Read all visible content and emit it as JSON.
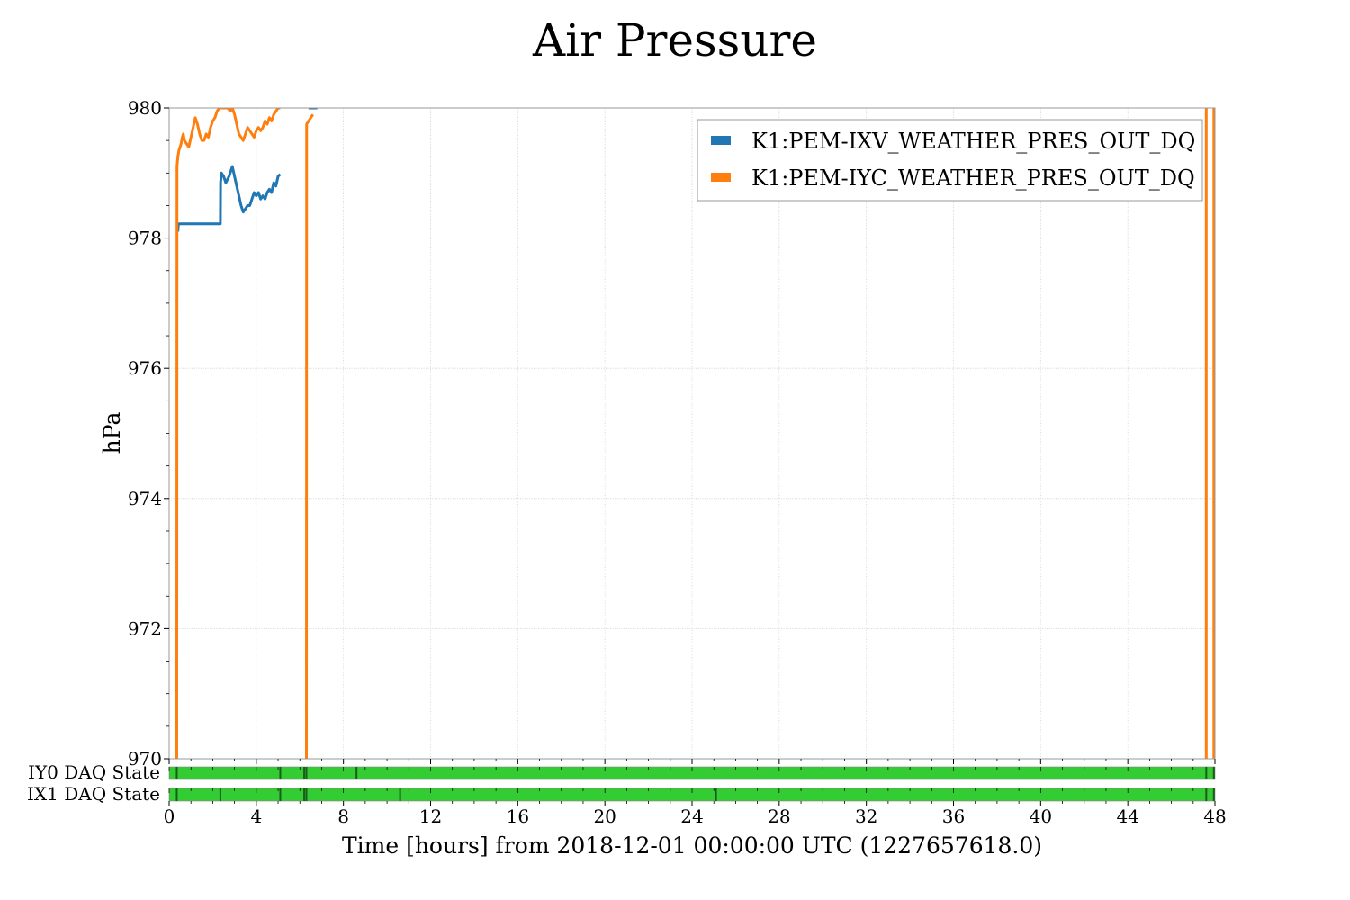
{
  "chart_data": {
    "type": "line",
    "title": "Air Pressure",
    "xlabel": "Time [hours] from 2018-12-01 00:00:00 UTC (1227657618.0)",
    "ylabel": "hPa",
    "xlim": [
      0,
      48
    ],
    "ylim": [
      970,
      980
    ],
    "x_ticks": [
      0,
      4,
      8,
      12,
      16,
      20,
      24,
      28,
      32,
      36,
      40,
      44,
      48
    ],
    "y_ticks": [
      970,
      972,
      974,
      976,
      978,
      980
    ],
    "x_tick_labels": [
      "0",
      "4",
      "8",
      "12",
      "16",
      "20",
      "24",
      "28",
      "32",
      "36",
      "40",
      "44",
      "48"
    ],
    "y_tick_labels": [
      "970",
      "972",
      "974",
      "976",
      "978",
      "980"
    ],
    "grid": true,
    "legend_position": "top-right",
    "series": [
      {
        "name": "K1:PEM-IXV_WEATHER_PRES_OUT_DQ",
        "color": "#1f77b4",
        "segments": [
          {
            "x": [
              0.4,
              0.42,
              0.45,
              0.5,
              0.8,
              1.2,
              1.6,
              2.0,
              2.35,
              2.36,
              2.4,
              2.5,
              2.6,
              2.75,
              2.9,
              3.0,
              3.1,
              3.2,
              3.3,
              3.4,
              3.5,
              3.6,
              3.7,
              3.8,
              3.9,
              4.0,
              4.1,
              4.2,
              4.3,
              4.4,
              4.5,
              4.6,
              4.7,
              4.8,
              4.9,
              5.0,
              5.1
            ],
            "y": [
              978.1,
              978.2,
              978.22,
              978.22,
              978.22,
              978.22,
              978.22,
              978.22,
              978.22,
              978.85,
              979.0,
              978.95,
              978.85,
              978.95,
              979.1,
              978.95,
              978.8,
              978.65,
              978.5,
              978.4,
              978.45,
              978.5,
              978.5,
              978.6,
              978.7,
              978.65,
              978.7,
              978.6,
              978.65,
              978.6,
              978.7,
              978.75,
              978.7,
              978.85,
              978.8,
              978.95,
              978.98
            ]
          },
          {
            "x": [
              6.4,
              6.6,
              6.8
            ],
            "y": [
              980.0,
              980.0,
              980.0
            ]
          }
        ]
      },
      {
        "name": "K1:PEM-IYC_WEATHER_PRES_OUT_DQ",
        "color": "#ff7f0e",
        "segments": [
          {
            "x": [
              0.35,
              0.36,
              0.4,
              0.45,
              0.5,
              0.55,
              0.6,
              0.65,
              0.7,
              0.8,
              0.9,
              1.0,
              1.1,
              1.2,
              1.3,
              1.4,
              1.5,
              1.6,
              1.7,
              1.8,
              1.9,
              2.0,
              2.1,
              2.2,
              2.3,
              2.4,
              2.5,
              2.6,
              2.7,
              2.8,
              2.9,
              3.0,
              3.1,
              3.2,
              3.3,
              3.4,
              3.5,
              3.6,
              3.7,
              3.8,
              3.9,
              4.0,
              4.1,
              4.2,
              4.3,
              4.4,
              4.5,
              4.6,
              4.7,
              4.8,
              4.9,
              5.0,
              5.1
            ],
            "y": [
              970.0,
              979.1,
              979.25,
              979.35,
              979.4,
              979.45,
              979.55,
              979.6,
              979.5,
              979.45,
              979.4,
              979.55,
              979.7,
              979.85,
              979.75,
              979.6,
              979.5,
              979.5,
              979.6,
              979.55,
              979.7,
              979.8,
              979.85,
              979.95,
              980.0,
              980.0,
              980.0,
              980.0,
              980.0,
              979.95,
              980.0,
              979.9,
              979.75,
              979.6,
              979.55,
              979.5,
              979.6,
              979.7,
              979.65,
              979.6,
              979.55,
              979.65,
              979.7,
              979.65,
              979.7,
              979.8,
              979.75,
              979.85,
              979.8,
              979.9,
              979.95,
              980.0,
              980.0
            ]
          },
          {
            "x": [
              6.3,
              6.31,
              6.4,
              6.5,
              6.6
            ],
            "y": [
              970.0,
              979.75,
              979.8,
              979.85,
              979.9
            ]
          },
          {
            "x": [
              47.6,
              47.6
            ],
            "y": [
              970.0,
              980.0
            ]
          },
          {
            "x": [
              47.95,
              47.95
            ],
            "y": [
              970.0,
              980.0
            ]
          }
        ]
      }
    ],
    "state_segments": [
      {
        "label": "IY0 DAQ State",
        "color": "#33cc33",
        "gap_color": "#1a5c1a",
        "gaps": [
          0.35,
          5.1,
          6.2,
          6.3,
          8.6,
          47.6,
          47.95
        ]
      },
      {
        "label": "IX1 DAQ State",
        "color": "#33cc33",
        "gap_color": "#1a5c1a",
        "gaps": [
          0.35,
          2.35,
          5.1,
          6.2,
          6.3,
          10.6,
          25.1,
          47.6,
          47.95
        ]
      }
    ]
  }
}
